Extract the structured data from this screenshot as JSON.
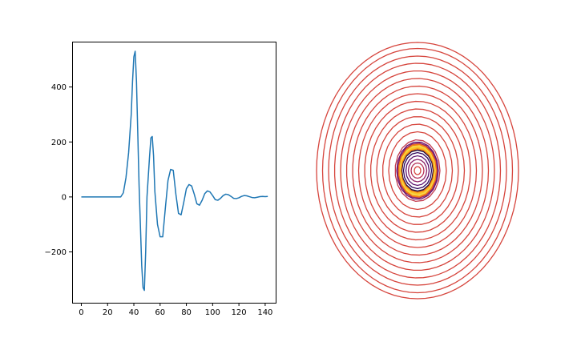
{
  "chart_data": [
    {
      "type": "line",
      "title": "",
      "xlabel": "",
      "ylabel": "",
      "xlim": [
        -7,
        148
      ],
      "ylim": [
        -385,
        565
      ],
      "xticks": [
        0,
        20,
        40,
        60,
        80,
        100,
        120,
        140
      ],
      "yticks": [
        -200,
        0,
        200,
        400
      ],
      "grid": false,
      "color": "#1f77b4",
      "series": [
        {
          "x": [
            0,
            30,
            32,
            34,
            36,
            38,
            39,
            40,
            41,
            42,
            44,
            46,
            47,
            48,
            49,
            50,
            52,
            53,
            54,
            55,
            56,
            58,
            60,
            62,
            64,
            66,
            68,
            70,
            72,
            74,
            76,
            78,
            80,
            82,
            84,
            86,
            88,
            90,
            92,
            94,
            96,
            98,
            100,
            102,
            104,
            106,
            108,
            110,
            112,
            114,
            116,
            118,
            120,
            122,
            124,
            126,
            128,
            130,
            132,
            134,
            136,
            138,
            140,
            142
          ],
          "y": [
            0,
            0,
            15,
            70,
            160,
            300,
            420,
            510,
            530,
            420,
            40,
            -250,
            -330,
            -340,
            -200,
            0,
            150,
            215,
            220,
            150,
            20,
            -100,
            -145,
            -145,
            -40,
            60,
            100,
            97,
            10,
            -60,
            -65,
            -20,
            30,
            45,
            40,
            10,
            -25,
            -30,
            -12,
            12,
            22,
            18,
            5,
            -10,
            -12,
            -5,
            5,
            10,
            8,
            2,
            -5,
            -6,
            -3,
            2,
            5,
            4,
            1,
            -2,
            -3,
            -1,
            1,
            2,
            1,
            2
          ]
        }
      ]
    },
    {
      "type": "contour",
      "title": "",
      "axes_visible": false,
      "colormap": "inferno",
      "center": [
        0,
        0
      ],
      "ring_semi_axes": [
        [
          0.08,
          0.1
        ],
        [
          0.16,
          0.19
        ],
        [
          0.23,
          0.28
        ],
        [
          0.29,
          0.37
        ],
        [
          0.35,
          0.45
        ],
        [
          0.4,
          0.52
        ],
        [
          0.42,
          0.55
        ],
        [
          0.44,
          0.58
        ],
        [
          0.46,
          0.62
        ],
        [
          0.48,
          0.66
        ],
        [
          0.5,
          0.69
        ],
        [
          0.52,
          0.72
        ],
        [
          0.56,
          0.77
        ],
        [
          0.72,
          0.97
        ],
        [
          0.87,
          1.16
        ],
        [
          1.02,
          1.35
        ],
        [
          1.17,
          1.54
        ],
        [
          1.32,
          1.73
        ],
        [
          1.47,
          1.92
        ],
        [
          1.62,
          2.11
        ],
        [
          1.77,
          2.3
        ],
        [
          1.92,
          2.49
        ],
        [
          2.07,
          2.68
        ],
        [
          2.22,
          2.86
        ],
        [
          2.37,
          3.05
        ],
        [
          2.52,
          3.2
        ]
      ],
      "ring_colors": [
        "#d6453d",
        "#b53359",
        "#8e2469",
        "#5c126e",
        "#320a5e",
        "#1b0c41",
        "#f57d15",
        "#fac228",
        "#f6d746",
        "#f57d15",
        "#932667",
        "#6a176e",
        "#c33b4f",
        "#d6453d",
        "#d6453d",
        "#d6453d",
        "#d6453d",
        "#d6453d",
        "#d6453d",
        "#d6453d",
        "#d6453d",
        "#d6453d",
        "#d6453d",
        "#d6453d",
        "#d6453d",
        "#d6453d"
      ]
    }
  ]
}
